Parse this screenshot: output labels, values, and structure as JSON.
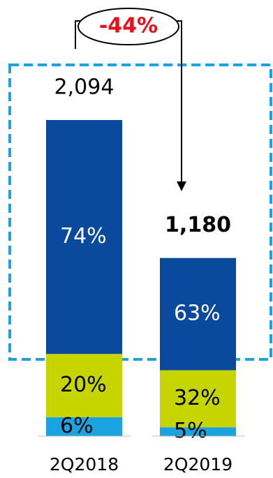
{
  "chart_data": {
    "type": "bar",
    "stacked": true,
    "categories": [
      "2Q2018",
      "2Q2019"
    ],
    "totals": {
      "values": [
        2094,
        1180
      ],
      "value_labels": [
        "2,094",
        "1,180"
      ]
    },
    "series": [
      {
        "color": "#1aa3e0",
        "values": [
          6,
          5
        ],
        "value_labels": [
          "6%",
          "5%"
        ]
      },
      {
        "color": "#c6d400",
        "values": [
          20,
          32
        ],
        "value_labels": [
          "20%",
          "32%"
        ]
      },
      {
        "color": "#0a4a9c",
        "values": [
          74,
          63
        ],
        "value_labels": [
          "74%",
          "63%"
        ]
      }
    ],
    "annotation": "-44%"
  }
}
